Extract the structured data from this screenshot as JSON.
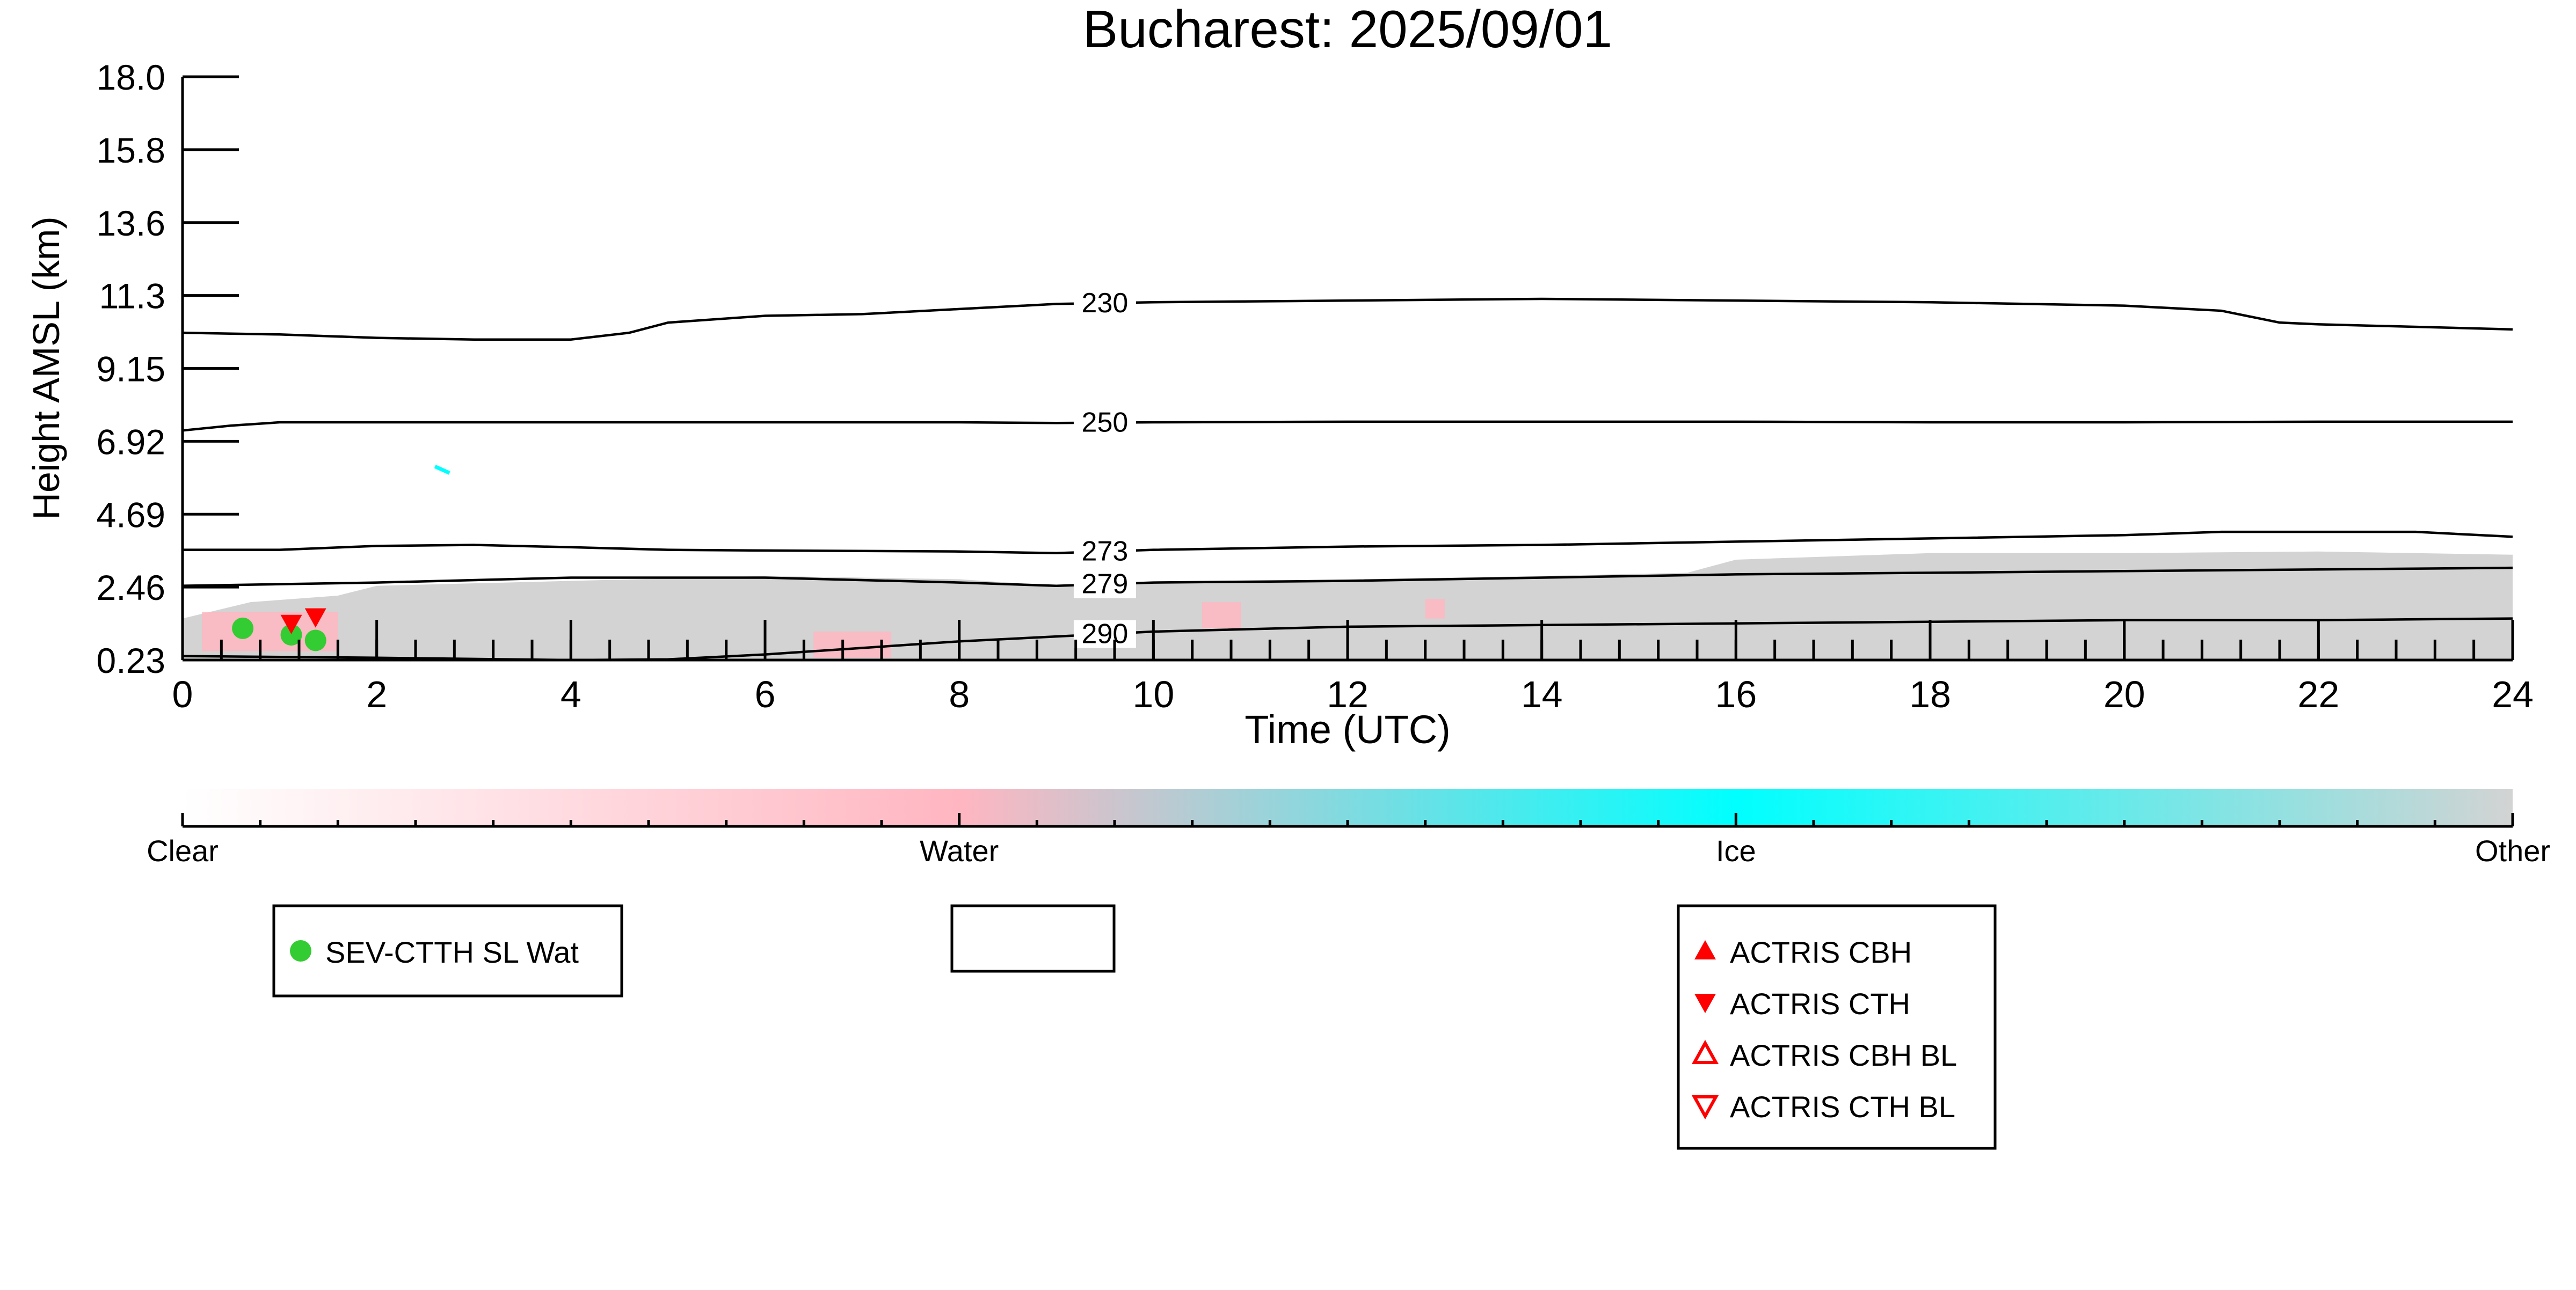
{
  "chart_data": {
    "type": "heatmap",
    "title": "Bucharest: 2025/09/01",
    "xlabel": "Time (UTC)",
    "ylabel": "Height AMSL (km)",
    "xlim": [
      0,
      24
    ],
    "ylim": [
      0.23,
      18.0
    ],
    "x_ticks": [
      "0",
      "2",
      "4",
      "6",
      "8",
      "10",
      "12",
      "14",
      "16",
      "18",
      "20",
      "22",
      "24"
    ],
    "y_ticks": [
      "0.23",
      "2.46",
      "4.69",
      "6.92",
      "9.15",
      "11.3",
      "13.6",
      "15.8",
      "18.0"
    ],
    "y_tick_values": [
      0.23,
      2.46,
      4.69,
      6.92,
      9.15,
      11.3,
      13.6,
      15.8,
      18.0
    ],
    "colors": {
      "clear": "#ffffff",
      "water": "#ffb6c1",
      "ice": "#00ffff",
      "other": "#d3d3d3",
      "sev_marker": "#33cc33",
      "actris_marker": "#ff0000"
    },
    "colorbar": {
      "labels": [
        "Clear",
        "Water",
        "Ice",
        "Other"
      ],
      "gradient": [
        "#ffffff",
        "#ffb6c1",
        "#00ffff",
        "#d3d3d3"
      ]
    },
    "isotherms": [
      {
        "label": "230",
        "points": [
          [
            0,
            10.2
          ],
          [
            1,
            10.15
          ],
          [
            2,
            10.05
          ],
          [
            3,
            10.0
          ],
          [
            4,
            10.0
          ],
          [
            4.6,
            10.2
          ],
          [
            5,
            10.5
          ],
          [
            6,
            10.7
          ],
          [
            7,
            10.75
          ],
          [
            8,
            10.9
          ],
          [
            9,
            11.05
          ],
          [
            10,
            11.1
          ],
          [
            12,
            11.15
          ],
          [
            14,
            11.2
          ],
          [
            16,
            11.15
          ],
          [
            18,
            11.1
          ],
          [
            20,
            11.0
          ],
          [
            21,
            10.85
          ],
          [
            21.6,
            10.5
          ],
          [
            22,
            10.45
          ],
          [
            24,
            10.3
          ]
        ]
      },
      {
        "label": "250",
        "points": [
          [
            0,
            7.25
          ],
          [
            0.5,
            7.4
          ],
          [
            1,
            7.5
          ],
          [
            2,
            7.5
          ],
          [
            4,
            7.5
          ],
          [
            6,
            7.5
          ],
          [
            8,
            7.5
          ],
          [
            9,
            7.48
          ],
          [
            10,
            7.5
          ],
          [
            12,
            7.52
          ],
          [
            14,
            7.52
          ],
          [
            16,
            7.52
          ],
          [
            18,
            7.5
          ],
          [
            20,
            7.5
          ],
          [
            22,
            7.52
          ],
          [
            24,
            7.52
          ]
        ]
      },
      {
        "label": "273",
        "points": [
          [
            0,
            3.6
          ],
          [
            1,
            3.6
          ],
          [
            2,
            3.72
          ],
          [
            3,
            3.75
          ],
          [
            4,
            3.68
          ],
          [
            5,
            3.6
          ],
          [
            6,
            3.58
          ],
          [
            8,
            3.55
          ],
          [
            9,
            3.5
          ],
          [
            10,
            3.6
          ],
          [
            12,
            3.7
          ],
          [
            14,
            3.75
          ],
          [
            16,
            3.85
          ],
          [
            18,
            3.95
          ],
          [
            20,
            4.05
          ],
          [
            21,
            4.15
          ],
          [
            23,
            4.15
          ],
          [
            24,
            4.0
          ]
        ]
      },
      {
        "label": "279",
        "points": [
          [
            0,
            2.5
          ],
          [
            1,
            2.55
          ],
          [
            2,
            2.6
          ],
          [
            4,
            2.75
          ],
          [
            6,
            2.75
          ],
          [
            8,
            2.6
          ],
          [
            9,
            2.5
          ],
          [
            10,
            2.6
          ],
          [
            12,
            2.65
          ],
          [
            14,
            2.75
          ],
          [
            16,
            2.85
          ],
          [
            18,
            2.9
          ],
          [
            20,
            2.95
          ],
          [
            22,
            3.0
          ],
          [
            24,
            3.05
          ]
        ]
      },
      {
        "label": "290",
        "points": [
          [
            0,
            0.35
          ],
          [
            2,
            0.3
          ],
          [
            4,
            0.23
          ],
          [
            5,
            0.25
          ],
          [
            6,
            0.4
          ],
          [
            7,
            0.6
          ],
          [
            8,
            0.8
          ],
          [
            9,
            0.95
          ],
          [
            10,
            1.1
          ],
          [
            12,
            1.25
          ],
          [
            14,
            1.3
          ],
          [
            16,
            1.35
          ],
          [
            18,
            1.4
          ],
          [
            20,
            1.45
          ],
          [
            22,
            1.45
          ],
          [
            24,
            1.5
          ]
        ]
      }
    ],
    "isotherm_label_x": 9.5,
    "cloud_mask": {
      "other_top": [
        [
          0,
          1.5
        ],
        [
          0.7,
          2.0
        ],
        [
          1.6,
          2.2
        ],
        [
          2,
          2.5
        ],
        [
          4,
          2.65
        ],
        [
          6,
          2.8
        ],
        [
          8,
          2.7
        ],
        [
          9,
          2.5
        ],
        [
          10,
          2.6
        ],
        [
          12,
          2.7
        ],
        [
          14,
          2.8
        ],
        [
          15.5,
          2.9
        ],
        [
          16,
          3.3
        ],
        [
          18,
          3.5
        ],
        [
          20,
          3.5
        ],
        [
          22,
          3.55
        ],
        [
          24,
          3.45
        ]
      ],
      "water_patches": [
        {
          "x": [
            0.2,
            1.6
          ],
          "y": [
            0.5,
            1.7
          ]
        },
        {
          "x": [
            6.5,
            7.3
          ],
          "y": [
            0.3,
            1.1
          ]
        },
        {
          "x": [
            10.5,
            10.9
          ],
          "y": [
            1.2,
            2.0
          ]
        },
        {
          "x": [
            12.8,
            13.0
          ],
          "y": [
            1.5,
            2.1
          ]
        }
      ],
      "ice_patches": [
        {
          "x": [
            2.6,
            2.75
          ],
          "y": [
            5.95,
            6.15
          ]
        }
      ]
    },
    "markers": [
      {
        "name": "SEV-CTTH SL Wat",
        "shape": "circle-filled",
        "color": "#33cc33",
        "points": [
          [
            0.62,
            1.2
          ],
          [
            1.12,
            1.0
          ],
          [
            1.37,
            0.83
          ]
        ]
      },
      {
        "name": "ACTRIS CTH",
        "shape": "triangle-down-filled",
        "color": "#ff0000",
        "points": [
          [
            1.12,
            1.35
          ],
          [
            1.37,
            1.55
          ]
        ]
      }
    ],
    "legends": [
      {
        "entries": [
          {
            "label": "SEV-CTTH SL Wat",
            "shape": "circle-filled",
            "color": "#33cc33"
          }
        ]
      },
      {
        "entries": []
      },
      {
        "entries": [
          {
            "label": "ACTRIS CBH",
            "shape": "triangle-up-filled",
            "color": "#ff0000"
          },
          {
            "label": "ACTRIS CTH",
            "shape": "triangle-down-filled",
            "color": "#ff0000"
          },
          {
            "label": "ACTRIS CBH BL",
            "shape": "triangle-up-open",
            "color": "#ff0000"
          },
          {
            "label": "ACTRIS CTH BL",
            "shape": "triangle-down-open",
            "color": "#ff0000"
          }
        ]
      }
    ]
  }
}
